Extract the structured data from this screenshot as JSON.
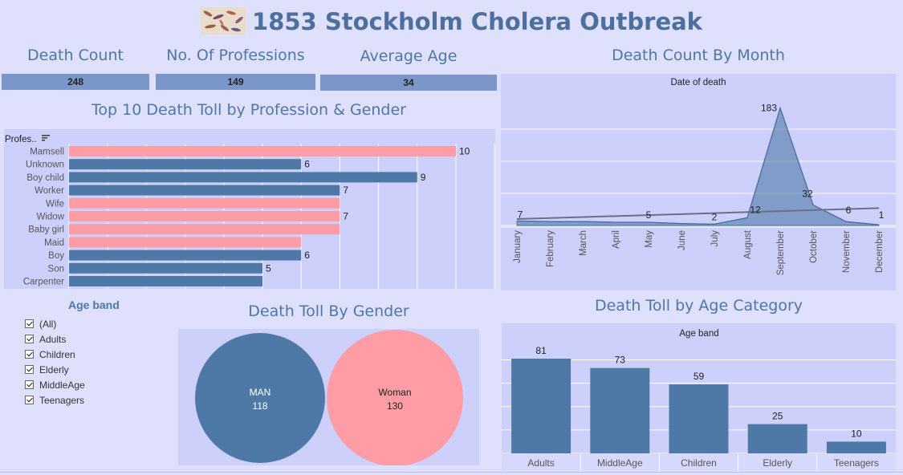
{
  "dashboard": {
    "title": "1853 Stockholm Cholera Outbreak"
  },
  "kpis": [
    {
      "label": "Death Count",
      "value": "248"
    },
    {
      "label": "No. Of Professions",
      "value": "149"
    },
    {
      "label": "Average Age",
      "value": "34"
    }
  ],
  "filter": {
    "title": "Age band",
    "items": [
      "(All)",
      "Adults",
      "Children",
      "Elderly",
      "MiddleAge",
      "Teenagers"
    ]
  },
  "colors": {
    "male": "#4e79a7",
    "female": "#ff9da7",
    "panel": "#ccd0fb",
    "background": "#dfe0fb",
    "trend": "#6a6f8c"
  },
  "chart_data": [
    {
      "id": "profession",
      "type": "bar",
      "orientation": "horizontal",
      "title": "Top 10 Death Toll by Profession  & Gender",
      "axis_header": "Profes..",
      "categories": [
        "Mamsell",
        "Unknown",
        "Boy child",
        "Worker",
        "Wife",
        "Widow",
        "Baby girl",
        "Maid",
        "Boy",
        "Son",
        "Carpenter"
      ],
      "values": [
        10,
        6,
        9,
        7,
        7,
        7,
        7,
        6,
        6,
        5,
        5
      ],
      "gender": [
        "female",
        "male",
        "male",
        "male",
        "female",
        "female",
        "female",
        "female",
        "male",
        "male",
        "male"
      ],
      "data_labels": [
        "10",
        "6",
        "9",
        "7",
        "",
        "7",
        "",
        "",
        "6",
        "5",
        ""
      ],
      "xlim": [
        0,
        11
      ]
    },
    {
      "id": "month",
      "type": "area",
      "title": "Death Count By Month",
      "header": "Date of death",
      "categories": [
        "January",
        "February",
        "March",
        "April",
        "May",
        "June",
        "July",
        "August",
        "September",
        "October",
        "November",
        "December"
      ],
      "values": [
        7,
        6,
        6,
        5,
        5,
        3,
        2,
        12,
        183,
        32,
        6,
        1
      ],
      "data_labels": [
        "7",
        "",
        "",
        "",
        "5",
        "",
        "2",
        "12",
        "183",
        "32",
        "6",
        "1"
      ],
      "trend_line": [
        10,
        27
      ],
      "ylim": [
        0,
        200
      ]
    },
    {
      "id": "gender",
      "type": "bubble",
      "title": "Death Toll By Gender",
      "categories": [
        "MAN",
        "Woman"
      ],
      "values": [
        118,
        130
      ]
    },
    {
      "id": "age",
      "type": "bar",
      "title": "Death Toll by Age Category",
      "header": "Age band",
      "categories": [
        "Adults",
        "MiddleAge",
        "Children",
        "Elderly",
        "Teenagers"
      ],
      "values": [
        81,
        73,
        59,
        25,
        10
      ],
      "ylim": [
        0,
        100
      ]
    }
  ]
}
